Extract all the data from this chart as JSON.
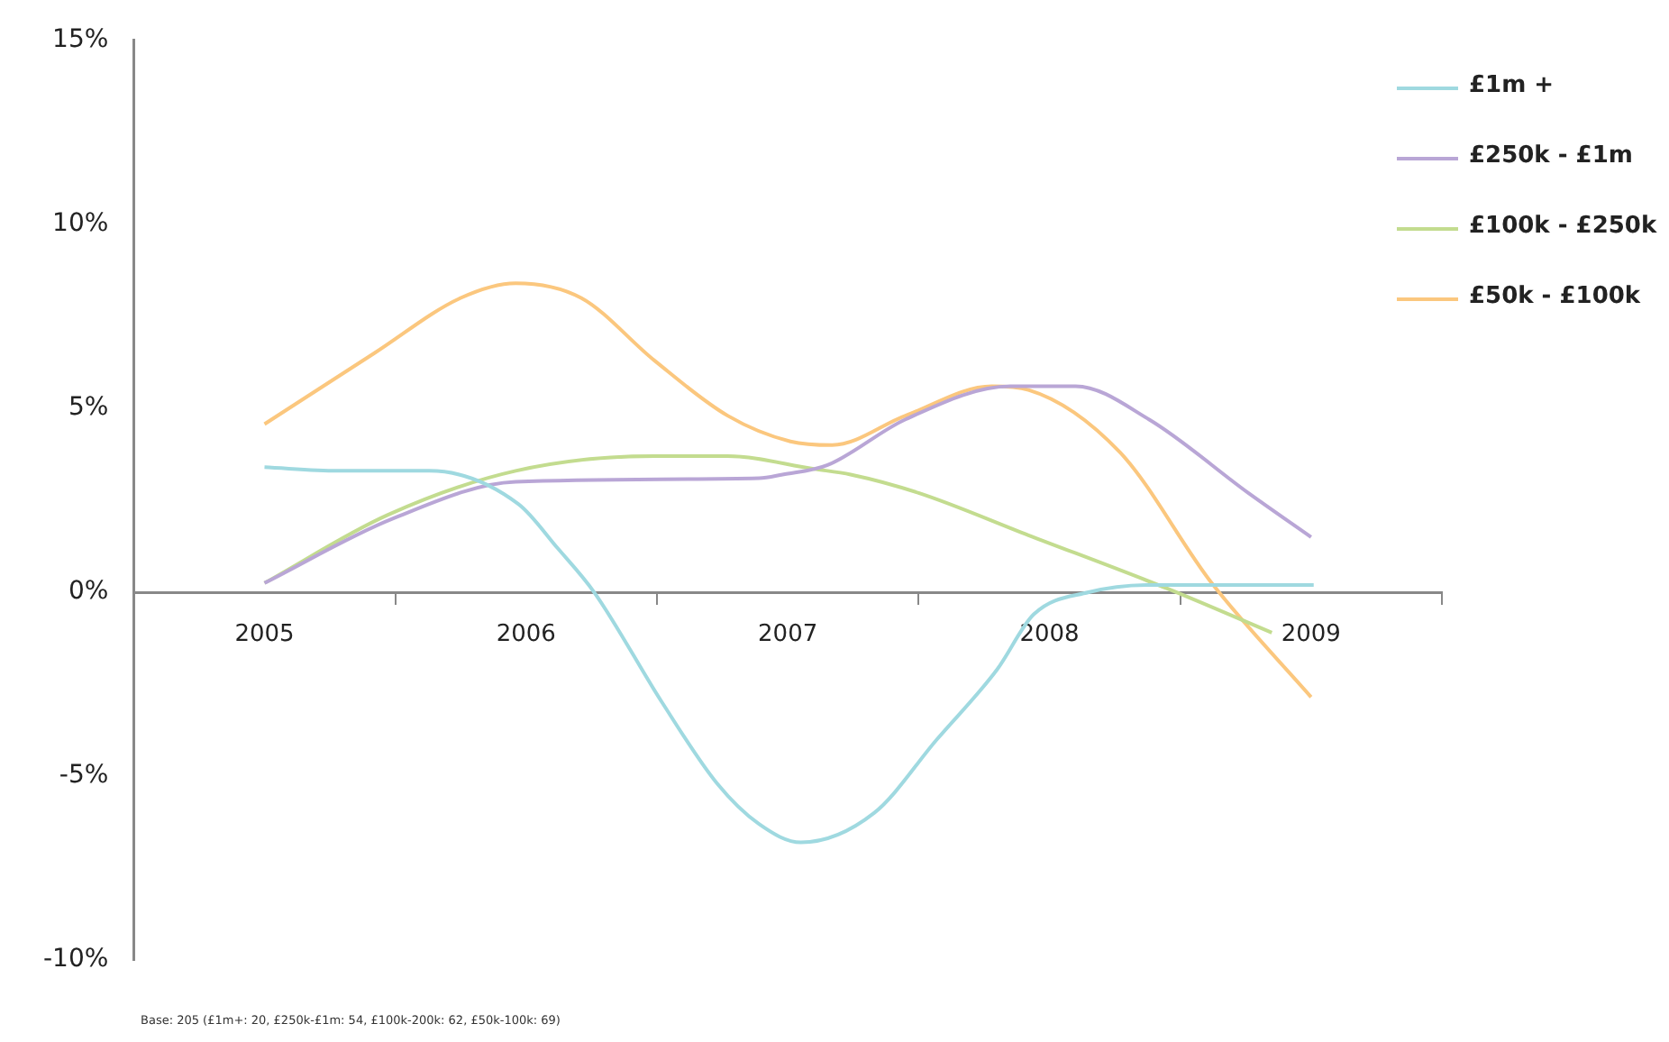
{
  "chart_data": {
    "type": "line",
    "xlim": [
      2004.5,
      2009.5
    ],
    "xticks": [
      {
        "value": 2005,
        "label": "2005"
      },
      {
        "value": 2005.5,
        "label": null
      },
      {
        "value": 2006,
        "label": "2006"
      },
      {
        "value": 2006.5,
        "label": null
      },
      {
        "value": 2007,
        "label": "2007"
      },
      {
        "value": 2007.5,
        "label": null
      },
      {
        "value": 2008,
        "label": "2008"
      },
      {
        "value": 2008.5,
        "label": null
      },
      {
        "value": 2009,
        "label": "2009"
      },
      {
        "value": 2009.5,
        "label": null
      }
    ],
    "ylim": [
      -10,
      15
    ],
    "yticks": [
      {
        "value": -10,
        "label": "-10%"
      },
      {
        "value": -5,
        "label": "-5%"
      },
      {
        "value": 0,
        "label": "0%"
      },
      {
        "value": 5,
        "label": "5%"
      },
      {
        "value": 10,
        "label": "10%"
      },
      {
        "value": 15,
        "label": "15%"
      }
    ],
    "grid": false,
    "legend": "right",
    "marker": "none",
    "line_style": "solid",
    "series": [
      {
        "name": "£1m +",
        "color": "#9fd9e0",
        "x": [
          2005,
          2005.28,
          2005.63,
          2005.97,
          2006.12,
          2006.26,
          2006.52,
          2006.73,
          2006.89,
          2007.05,
          2007.33,
          2007.57,
          2007.8,
          2007.94,
          2008.15,
          2008.38,
          2009.01
        ],
        "values": [
          3.4,
          3.3,
          3.3,
          2.4,
          1.2,
          0,
          -3.0,
          -5.2,
          -6.3,
          -6.8,
          -6.0,
          -4.0,
          -2.1,
          -0.6,
          0,
          0.2,
          0.2
        ]
      },
      {
        "name": "£250k - £1m",
        "color": "#b9a6d6",
        "x": [
          2005,
          2005.49,
          2005.96,
          2006.89,
          2006.98,
          2007.15,
          2007.45,
          2007.85,
          2008.1,
          2008.38,
          2008.76,
          2009.0
        ],
        "values": [
          0.25,
          2.0,
          3.0,
          3.1,
          3.2,
          3.45,
          4.7,
          5.6,
          5.6,
          4.7,
          2.7,
          1.5
        ]
      },
      {
        "name": "£100k - £250k",
        "color": "#c3dc8f",
        "x": [
          2005,
          2005.47,
          2005.96,
          2006.49,
          2006.77,
          2007.1,
          2007.24,
          2007.5,
          2007.92,
          2008.45,
          2008.85
        ],
        "values": [
          0.25,
          2.1,
          3.3,
          3.7,
          3.7,
          3.35,
          3.2,
          2.7,
          1.55,
          0.1,
          -1.1
        ]
      },
      {
        "name": "£50k - £100k",
        "color": "#fbc77e",
        "x": [
          2005,
          2005.42,
          2005.75,
          2005.96,
          2006.21,
          2006.49,
          2006.77,
          2007.01,
          2007.17,
          2007.45,
          2007.78,
          2007.92,
          2008.27,
          2008.62,
          2009.0
        ],
        "values": [
          4.57,
          6.5,
          8.0,
          8.4,
          8.0,
          6.3,
          4.8,
          4.1,
          4.0,
          4.8,
          5.6,
          5.5,
          3.8,
          0.25,
          -2.85
        ]
      }
    ],
    "annotations": [
      "Base: 205 (£1m+: 20, £250k-£1m: 54, £100k-200k: 62, £50k-100k: 69)"
    ]
  }
}
